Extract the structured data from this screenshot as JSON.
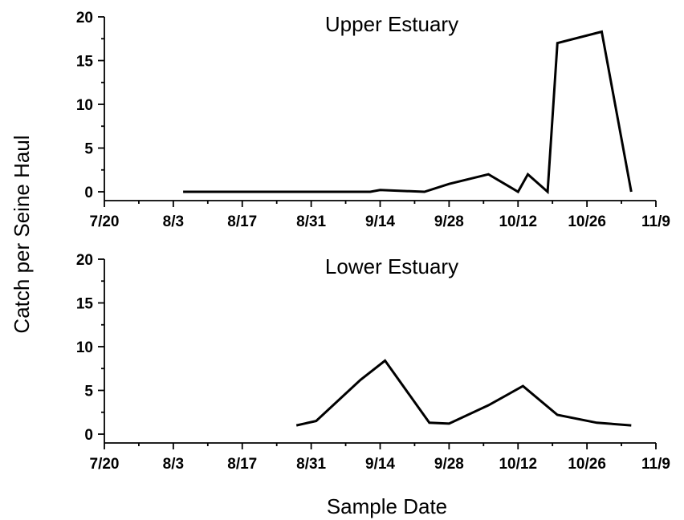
{
  "chart_data": {
    "type": "line",
    "ylabel": "Catch per Seine Haul",
    "xlabel": "Sample Date",
    "x_tick_labels": [
      "7/20",
      "8/3",
      "8/17",
      "8/31",
      "9/14",
      "9/28",
      "10/12",
      "10/26",
      "11/9"
    ],
    "x_tick_days": [
      0,
      14,
      28,
      42,
      56,
      70,
      84,
      98,
      112
    ],
    "y_ticks": [
      0,
      5,
      10,
      15,
      20
    ],
    "xlim_days": [
      0,
      112
    ],
    "ylim": [
      -1,
      20
    ],
    "grid": false,
    "panels": [
      {
        "title": "Upper Estuary",
        "series": [
          {
            "x": [
              "8/5",
              "9/12",
              "9/14",
              "9/23",
              "9/28",
              "10/6",
              "10/12",
              "10/14",
              "10/18",
              "10/20",
              "10/29",
              "11/4"
            ],
            "y": [
              0,
              0,
              0.2,
              0,
              0.9,
              2,
              0,
              2,
              0,
              17,
              18.3,
              0
            ]
          }
        ]
      },
      {
        "title": "Lower Estuary",
        "series": [
          {
            "x": [
              "8/28",
              "9/1",
              "9/10",
              "9/15",
              "9/24",
              "9/28",
              "10/6",
              "10/13",
              "10/20",
              "10/28",
              "11/4"
            ],
            "y": [
              1,
              1.5,
              6.2,
              8.4,
              1.3,
              1.2,
              3.3,
              5.5,
              2.2,
              1.3,
              1
            ]
          }
        ]
      }
    ]
  }
}
